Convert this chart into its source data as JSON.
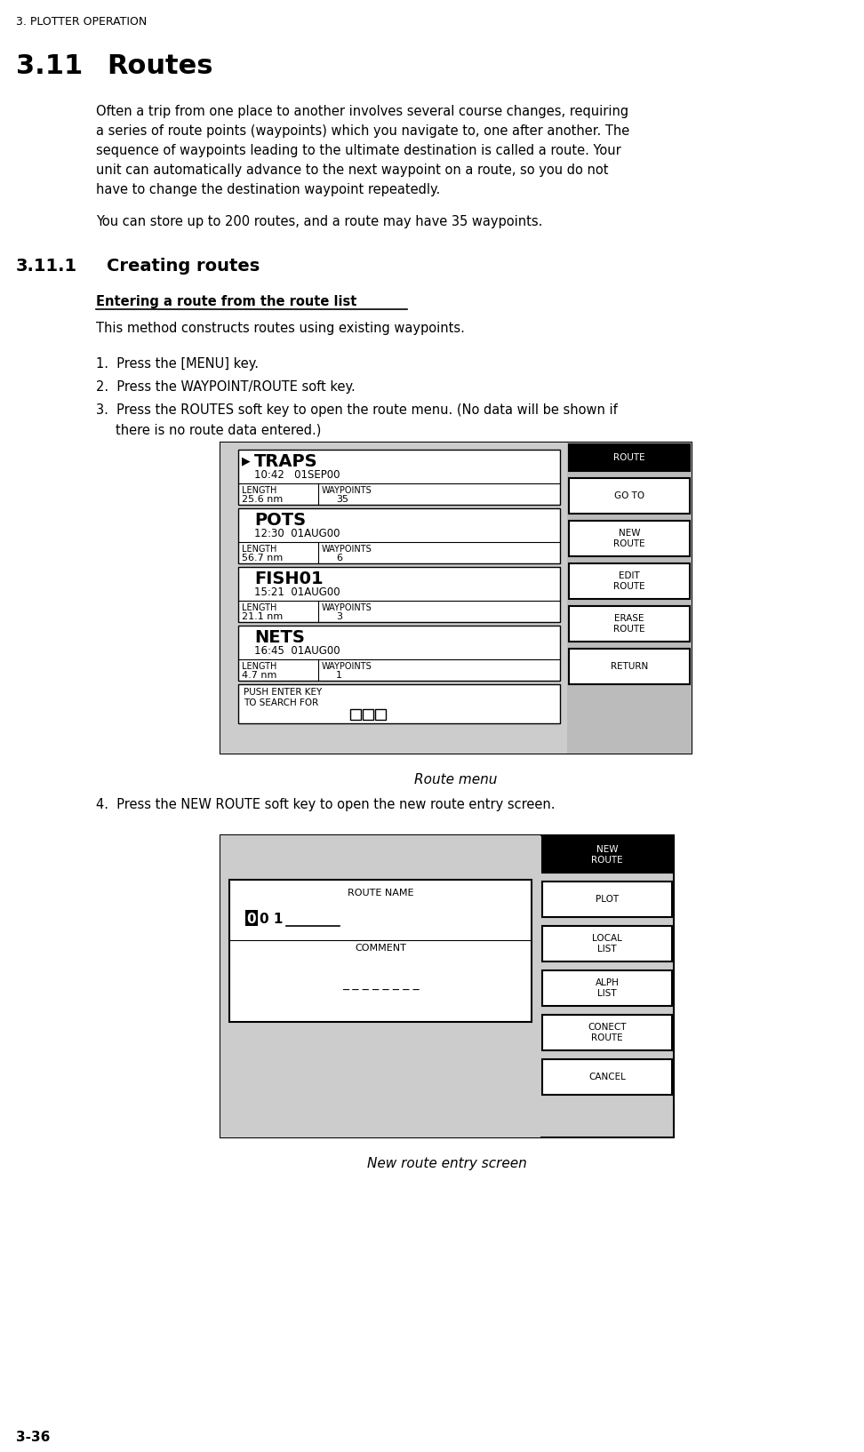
{
  "page_header": "3. PLOTTER OPERATION",
  "section_num": "3.11",
  "section_title": "Routes",
  "paragraph1": "Often a trip from one place to another involves several course changes, requiring a series of route points (waypoints) which you navigate to, one after another. The sequence of waypoints leading to the ultimate destination is called a route. Your unit can automatically advance to the next waypoint on a route, so you do not have to change the destination waypoint repeatedly.",
  "paragraph2": "You can store up to 200 routes, and a route may have 35 waypoints.",
  "subsection_num": "3.11.1",
  "subsection_title": "Creating routes",
  "underline_heading": "Entering a route from the route list",
  "intro_text": "This method constructs routes using existing waypoints.",
  "steps": [
    "Press the [MENU] key.",
    "Press the WAYPOINT/ROUTE soft key.",
    "Press the ROUTES soft key to open the route menu. (No data will be shown if\nthere is no route data entered.)"
  ],
  "route_menu_caption": "Route menu",
  "step4": "Press the NEW ROUTE soft key to open the new route entry screen.",
  "new_route_caption": "New route entry screen",
  "page_footer": "3-36",
  "route_entries": [
    {
      "name": "TRAPS",
      "time": "10:42   01SEP00",
      "length": "25.6 nm",
      "waypoints": "35",
      "selected": true
    },
    {
      "name": "POTS",
      "time": "12:30  01AUG00",
      "length": "56.7 nm",
      "waypoints": "6",
      "selected": false
    },
    {
      "name": "FISH01",
      "time": "15:21  01AUG00",
      "length": "21.1 nm",
      "waypoints": "3",
      "selected": false
    },
    {
      "name": "NETS",
      "time": "16:45  01AUG00",
      "length": "4.7 nm",
      "waypoints": "1",
      "selected": false
    }
  ],
  "route_buttons": [
    "ROUTE",
    "GO TO",
    "NEW\nROUTE",
    "EDIT\nROUTE",
    "ERASE\nROUTE",
    "RETURN"
  ],
  "push_enter_text": "PUSH ENTER KEY\nTO SEARCH FOR",
  "new_route_buttons": [
    "NEW\nROUTE",
    "PLOT",
    "LOCAL\nLIST",
    "ALPH\nLIST",
    "CONECT\nROUTE",
    "CANCEL"
  ],
  "route_name_label": "ROUTE NAME",
  "comment_label": "COMMENT",
  "route_name_value": "─0 1    ",
  "comment_dashes": "_ _ _ _ _ _ _ _"
}
